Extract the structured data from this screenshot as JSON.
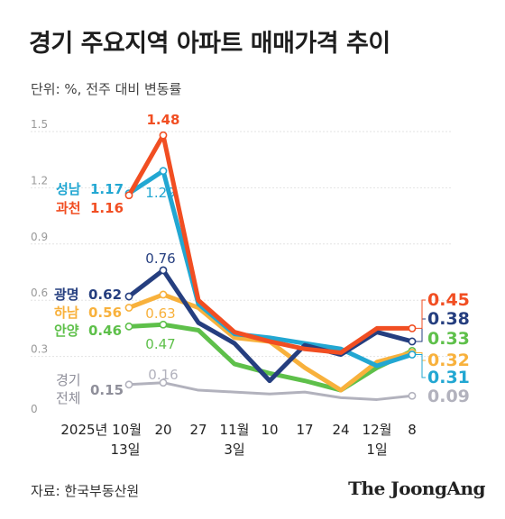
{
  "title": "경기 주요지역 아파트 매매가격 추이",
  "subtitle": "단위: %, 전주 대비 변동률",
  "source": "자료: 한국부동산원",
  "brand": "The JoongAng",
  "chart_data": {
    "type": "line",
    "title": "경기 주요지역 아파트 매매가격 추이",
    "ylabel": "%, 전주 대비 변동률",
    "ylim": [
      0,
      1.5
    ],
    "yticks": [
      "1.5",
      "1.2",
      "0.9",
      "0.6",
      "0.3",
      "0"
    ],
    "grid": true,
    "x_labels": [
      [
        "2025년 10월",
        "13일"
      ],
      [
        "20",
        ""
      ],
      [
        "27",
        ""
      ],
      [
        "11월",
        "3일"
      ],
      [
        "10",
        ""
      ],
      [
        "17",
        ""
      ],
      [
        "24",
        ""
      ],
      [
        "12월",
        "1일"
      ],
      [
        "8",
        ""
      ]
    ],
    "series": [
      {
        "name": "전체",
        "legend_prefix": "경기",
        "color": "#b2b2bd",
        "values": [
          0.15,
          0.16,
          0.12,
          0.11,
          0.1,
          0.11,
          0.08,
          0.07,
          0.09
        ],
        "start_label": "0.15",
        "peak_label": "0.16",
        "end_label": "0.09"
      },
      {
        "name": "안양",
        "color": "#5ec04a",
        "values": [
          0.46,
          0.47,
          0.44,
          0.26,
          0.21,
          0.17,
          0.12,
          0.24,
          0.33
        ],
        "start_label": "0.46",
        "peak_label": "0.47",
        "end_label": "0.33"
      },
      {
        "name": "하남",
        "color": "#f8b13c",
        "values": [
          0.56,
          0.63,
          0.56,
          0.4,
          0.38,
          0.24,
          0.12,
          0.27,
          0.32
        ],
        "start_label": "0.56",
        "peak_label": "0.63",
        "end_label": "0.32"
      },
      {
        "name": "성남",
        "color": "#22a7d2",
        "values": [
          1.17,
          1.29,
          0.58,
          0.42,
          0.4,
          0.37,
          0.34,
          0.25,
          0.31
        ],
        "start_label": "1.17",
        "peak_label": "1.29",
        "end_label": "0.31"
      },
      {
        "name": "광명",
        "color": "#253e7f",
        "values": [
          0.62,
          0.76,
          0.48,
          0.37,
          0.17,
          0.36,
          0.31,
          0.43,
          0.38
        ],
        "start_label": "0.62",
        "peak_label": "0.76",
        "end_label": "0.38"
      },
      {
        "name": "과천",
        "color": "#f14e22",
        "values": [
          1.16,
          1.48,
          0.6,
          0.43,
          0.38,
          0.34,
          0.32,
          0.45,
          0.45
        ],
        "start_label": "1.16",
        "peak_label": "1.48",
        "end_label": "0.45"
      }
    ]
  }
}
